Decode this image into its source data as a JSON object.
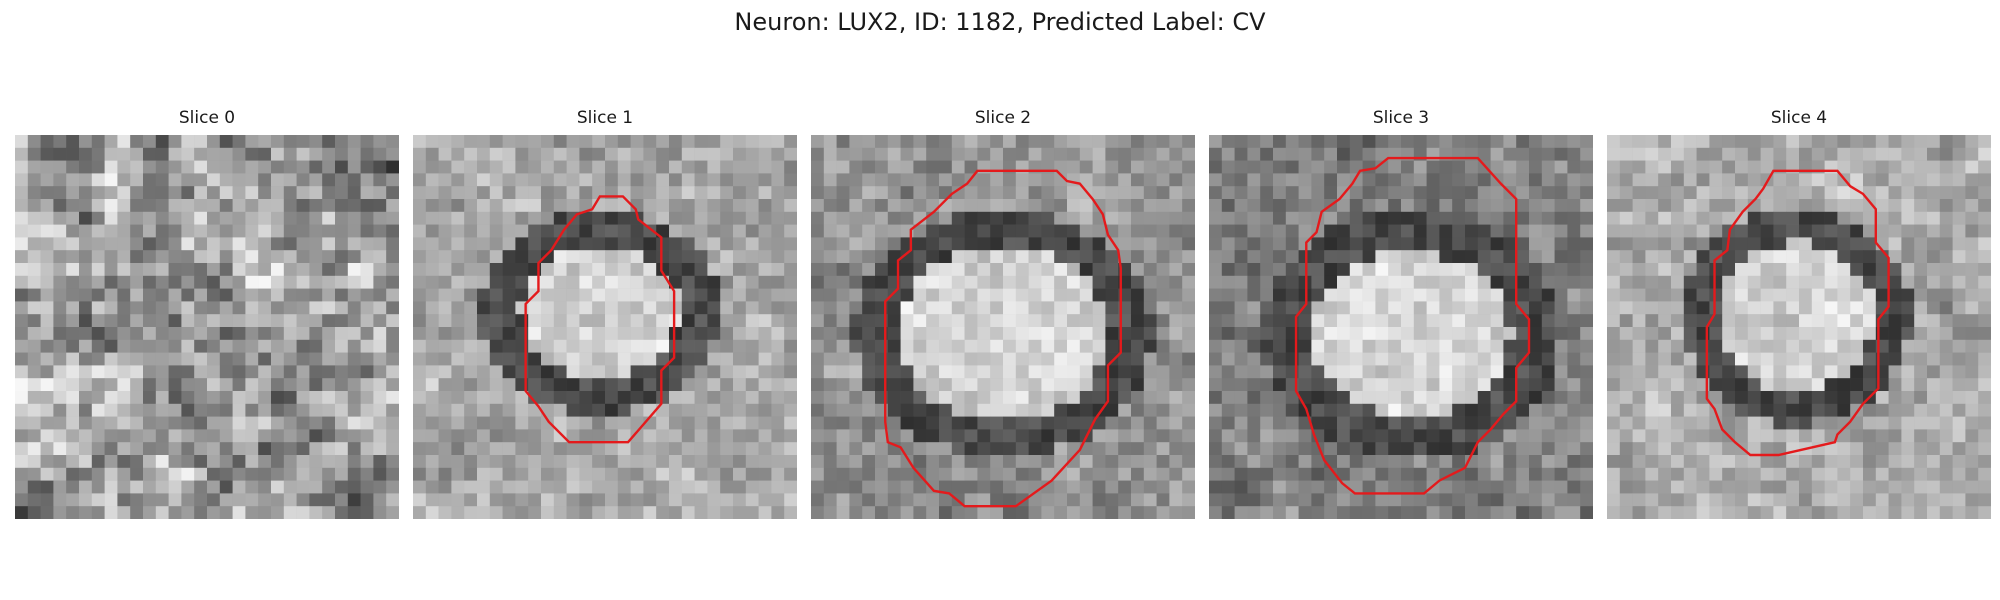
{
  "figure": {
    "title": "Neuron: LUX2, ID: 1182, Predicted Label: CV",
    "outline_color": "#e41a1c"
  },
  "panels": [
    {
      "title": "Slice 0",
      "has_outline": false
    },
    {
      "title": "Slice 1",
      "has_outline": true
    },
    {
      "title": "Slice 2",
      "has_outline": true
    },
    {
      "title": "Slice 3",
      "has_outline": true
    },
    {
      "title": "Slice 4",
      "has_outline": true
    }
  ]
}
